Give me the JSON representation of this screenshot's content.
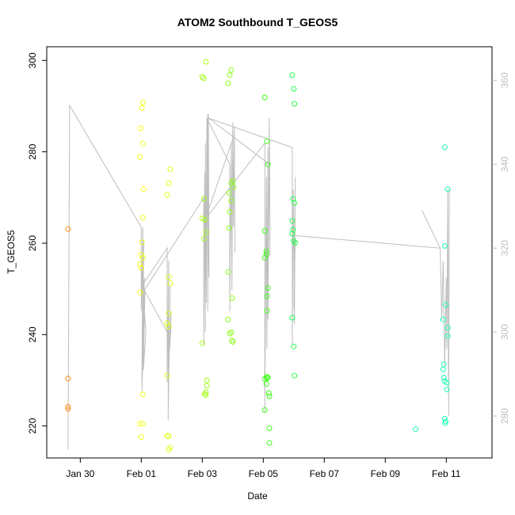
{
  "chart_data": {
    "type": "scatter",
    "title": "ATOM2 Southbound T_GEOS5",
    "xlabel": "Date",
    "ylabel": "T_GEOS5",
    "x_ticks": [
      "Jan 30",
      "Feb 01",
      "Feb 03",
      "Feb 05",
      "Feb 07",
      "Feb 09",
      "Feb 11"
    ],
    "x_tick_days": [
      30,
      32,
      34,
      36,
      38,
      40,
      42
    ],
    "xlim_days": [
      28.9,
      43.5
    ],
    "ylim": [
      213,
      303
    ],
    "y_ticks": [
      220,
      240,
      260,
      280,
      300
    ],
    "y2_ticks": [
      280,
      300,
      320,
      340,
      360
    ],
    "y2lim": [
      270,
      368
    ],
    "grid": false,
    "colors": {
      "axis": "#000000",
      "secondary_axis": "#bebebe",
      "altitude_line": "#bebebe"
    },
    "points": [
      {
        "x": 29.6,
        "y": 263.1,
        "c": "#ff8c1a"
      },
      {
        "x": 29.6,
        "y": 230.4,
        "c": "#ff8c1a"
      },
      {
        "x": 29.6,
        "y": 224.2,
        "c": "#ff8c1a"
      },
      {
        "x": 29.6,
        "y": 223.7,
        "c": "#ff8c1a"
      },
      {
        "x": 32.05,
        "y": 290.8,
        "c": "#f2ff1a"
      },
      {
        "x": 32.02,
        "y": 289.6,
        "c": "#f2ff1a"
      },
      {
        "x": 31.98,
        "y": 285.2,
        "c": "#f2ff1a"
      },
      {
        "x": 32.05,
        "y": 281.8,
        "c": "#f2ff1a"
      },
      {
        "x": 31.95,
        "y": 278.9,
        "c": "#f2ff1a"
      },
      {
        "x": 32.08,
        "y": 271.8,
        "c": "#f2ff1a"
      },
      {
        "x": 32.05,
        "y": 265.6,
        "c": "#f2ff1a"
      },
      {
        "x": 32.02,
        "y": 260.2,
        "c": "#f2ff1a"
      },
      {
        "x": 32.0,
        "y": 257.5,
        "c": "#f2ff1a"
      },
      {
        "x": 32.05,
        "y": 256.8,
        "c": "#f2ff1a"
      },
      {
        "x": 31.96,
        "y": 255.4,
        "c": "#f2ff1a"
      },
      {
        "x": 32.0,
        "y": 254.6,
        "c": "#f2ff1a"
      },
      {
        "x": 31.97,
        "y": 249.2,
        "c": "#f2ff1a"
      },
      {
        "x": 32.05,
        "y": 226.9,
        "c": "#f2ff1a"
      },
      {
        "x": 31.95,
        "y": 220.5,
        "c": "#f2ff1a"
      },
      {
        "x": 32.05,
        "y": 220.5,
        "c": "#f2ff1a"
      },
      {
        "x": 32.0,
        "y": 217.6,
        "c": "#f2ff1a"
      },
      {
        "x": 32.95,
        "y": 276.2,
        "c": "#e5ff1a"
      },
      {
        "x": 32.9,
        "y": 273.1,
        "c": "#e5ff1a"
      },
      {
        "x": 32.85,
        "y": 270.6,
        "c": "#e5ff1a"
      },
      {
        "x": 32.9,
        "y": 252.6,
        "c": "#e5ff1a"
      },
      {
        "x": 32.95,
        "y": 251.2,
        "c": "#e5ff1a"
      },
      {
        "x": 32.9,
        "y": 244.6,
        "c": "#e5ff1a"
      },
      {
        "x": 32.85,
        "y": 242.5,
        "c": "#e5ff1a"
      },
      {
        "x": 32.9,
        "y": 241.8,
        "c": "#e5ff1a"
      },
      {
        "x": 32.85,
        "y": 231.0,
        "c": "#e5ff1a"
      },
      {
        "x": 32.85,
        "y": 217.9,
        "c": "#e5ff1a"
      },
      {
        "x": 32.9,
        "y": 217.7,
        "c": "#e5ff1a"
      },
      {
        "x": 32.95,
        "y": 215.3,
        "c": "#e5ff1a"
      },
      {
        "x": 32.9,
        "y": 214.8,
        "c": "#e5ff1a"
      },
      {
        "x": 34.0,
        "y": 296.4,
        "c": "#a6ff1a"
      },
      {
        "x": 34.05,
        "y": 296.1,
        "c": "#a6ff1a"
      },
      {
        "x": 34.12,
        "y": 299.7,
        "c": "#a6ff1a"
      },
      {
        "x": 34.05,
        "y": 269.7,
        "c": "#a6ff1a"
      },
      {
        "x": 34.0,
        "y": 265.4,
        "c": "#a6ff1a"
      },
      {
        "x": 34.08,
        "y": 265.2,
        "c": "#a6ff1a"
      },
      {
        "x": 34.12,
        "y": 262.4,
        "c": "#a6ff1a"
      },
      {
        "x": 34.05,
        "y": 261.0,
        "c": "#a6ff1a"
      },
      {
        "x": 34.0,
        "y": 238.1,
        "c": "#a6ff1a"
      },
      {
        "x": 34.15,
        "y": 230.0,
        "c": "#a6ff1a"
      },
      {
        "x": 34.15,
        "y": 228.8,
        "c": "#a6ff1a"
      },
      {
        "x": 34.12,
        "y": 227.4,
        "c": "#a6ff1a"
      },
      {
        "x": 34.08,
        "y": 227.0,
        "c": "#a6ff1a"
      },
      {
        "x": 34.12,
        "y": 226.8,
        "c": "#a6ff1a"
      },
      {
        "x": 34.95,
        "y": 297.9,
        "c": "#8cff1a"
      },
      {
        "x": 34.9,
        "y": 296.8,
        "c": "#8cff1a"
      },
      {
        "x": 34.85,
        "y": 295.0,
        "c": "#8cff1a"
      },
      {
        "x": 35.0,
        "y": 273.6,
        "c": "#8cff1a"
      },
      {
        "x": 34.95,
        "y": 273.1,
        "c": "#8cff1a"
      },
      {
        "x": 35.02,
        "y": 272.3,
        "c": "#8cff1a"
      },
      {
        "x": 34.88,
        "y": 271.0,
        "c": "#8cff1a"
      },
      {
        "x": 34.95,
        "y": 269.3,
        "c": "#8cff1a"
      },
      {
        "x": 34.9,
        "y": 266.9,
        "c": "#8cff1a"
      },
      {
        "x": 34.88,
        "y": 263.3,
        "c": "#8cff1a"
      },
      {
        "x": 34.85,
        "y": 253.7,
        "c": "#8cff1a"
      },
      {
        "x": 34.98,
        "y": 248.0,
        "c": "#8cff1a"
      },
      {
        "x": 34.85,
        "y": 243.3,
        "c": "#8cff1a"
      },
      {
        "x": 34.95,
        "y": 240.5,
        "c": "#8cff1a"
      },
      {
        "x": 34.9,
        "y": 240.2,
        "c": "#8cff1a"
      },
      {
        "x": 34.97,
        "y": 238.7,
        "c": "#8cff1a"
      },
      {
        "x": 35.0,
        "y": 238.4,
        "c": "#8cff1a"
      },
      {
        "x": 36.05,
        "y": 291.9,
        "c": "#40ff1a"
      },
      {
        "x": 36.12,
        "y": 282.3,
        "c": "#40ff1a"
      },
      {
        "x": 36.15,
        "y": 277.2,
        "c": "#40ff1a"
      },
      {
        "x": 36.05,
        "y": 262.7,
        "c": "#40ff1a"
      },
      {
        "x": 36.1,
        "y": 258.2,
        "c": "#40ff1a"
      },
      {
        "x": 36.1,
        "y": 257.6,
        "c": "#40ff1a"
      },
      {
        "x": 36.05,
        "y": 256.8,
        "c": "#40ff1a"
      },
      {
        "x": 36.15,
        "y": 250.2,
        "c": "#40ff1a"
      },
      {
        "x": 36.12,
        "y": 248.4,
        "c": "#40ff1a"
      },
      {
        "x": 36.12,
        "y": 245.2,
        "c": "#40ff1a"
      },
      {
        "x": 36.1,
        "y": 230.8,
        "c": "#40ff1a"
      },
      {
        "x": 36.05,
        "y": 230.3,
        "c": "#40ff1a"
      },
      {
        "x": 36.12,
        "y": 230.4,
        "c": "#40ff1a"
      },
      {
        "x": 36.15,
        "y": 230.6,
        "c": "#40ff1a"
      },
      {
        "x": 36.1,
        "y": 229.2,
        "c": "#40ff1a"
      },
      {
        "x": 36.18,
        "y": 227.2,
        "c": "#40ff1a"
      },
      {
        "x": 36.2,
        "y": 226.5,
        "c": "#40ff1a"
      },
      {
        "x": 36.05,
        "y": 223.5,
        "c": "#40ff1a"
      },
      {
        "x": 36.2,
        "y": 219.5,
        "c": "#40ff1a"
      },
      {
        "x": 36.2,
        "y": 216.3,
        "c": "#40ff1a"
      },
      {
        "x": 36.95,
        "y": 296.8,
        "c": "#26ff4d"
      },
      {
        "x": 37.0,
        "y": 293.8,
        "c": "#26ff4d"
      },
      {
        "x": 37.02,
        "y": 290.5,
        "c": "#26ff4d"
      },
      {
        "x": 36.98,
        "y": 269.7,
        "c": "#26ff4d"
      },
      {
        "x": 37.02,
        "y": 268.8,
        "c": "#26ff4d"
      },
      {
        "x": 36.95,
        "y": 264.9,
        "c": "#26ff4d"
      },
      {
        "x": 36.98,
        "y": 263.0,
        "c": "#26ff4d"
      },
      {
        "x": 36.95,
        "y": 262.1,
        "c": "#26ff4d"
      },
      {
        "x": 37.0,
        "y": 260.5,
        "c": "#26ff4d"
      },
      {
        "x": 37.05,
        "y": 260.1,
        "c": "#26ff4d"
      },
      {
        "x": 36.95,
        "y": 243.7,
        "c": "#26ff4d"
      },
      {
        "x": 37.0,
        "y": 237.4,
        "c": "#26ff4d"
      },
      {
        "x": 37.02,
        "y": 231.0,
        "c": "#26ff4d"
      },
      {
        "x": 41.0,
        "y": 219.3,
        "c": "#1affb3"
      },
      {
        "x": 41.95,
        "y": 281.0,
        "c": "#1affb3"
      },
      {
        "x": 42.05,
        "y": 271.8,
        "c": "#1affb3"
      },
      {
        "x": 41.95,
        "y": 259.4,
        "c": "#1affb3"
      },
      {
        "x": 41.98,
        "y": 246.5,
        "c": "#1affb3"
      },
      {
        "x": 41.9,
        "y": 243.3,
        "c": "#1affb3"
      },
      {
        "x": 42.05,
        "y": 241.5,
        "c": "#1affb3"
      },
      {
        "x": 42.05,
        "y": 239.7,
        "c": "#1affb3"
      },
      {
        "x": 41.92,
        "y": 233.5,
        "c": "#1affb3"
      },
      {
        "x": 41.9,
        "y": 232.4,
        "c": "#1affb3"
      },
      {
        "x": 41.92,
        "y": 230.6,
        "c": "#1affb3"
      },
      {
        "x": 41.95,
        "y": 229.8,
        "c": "#1affb3"
      },
      {
        "x": 42.02,
        "y": 229.5,
        "c": "#1affb3"
      },
      {
        "x": 42.02,
        "y": 228.0,
        "c": "#1affb3"
      },
      {
        "x": 41.95,
        "y": 221.6,
        "c": "#1affb3"
      },
      {
        "x": 41.98,
        "y": 221.0,
        "c": "#1affb3"
      },
      {
        "x": 41.96,
        "y": 220.6,
        "c": "#1affb3"
      }
    ],
    "altitude_series": {
      "name": "",
      "y_axis": "secondary",
      "x": [
        29.6,
        29.65,
        29.65,
        32.0,
        32.0,
        32.05,
        32.02,
        32.08,
        32.05,
        32.1,
        32.02,
        32.12,
        32.07,
        32.15,
        32.1,
        32.02,
        32.85,
        32.85,
        32.9,
        32.88,
        32.95,
        32.9,
        32.98,
        32.93,
        32.98,
        32.85,
        32.1,
        34.05,
        34.05,
        34.08,
        34.1,
        34.1,
        34.12,
        34.15,
        34.13,
        34.18,
        34.18,
        34.2,
        34.22,
        34.15,
        34.9,
        34.9,
        34.95,
        34.97,
        35.0,
        35.02,
        35.05,
        35.07,
        35.05,
        34.1,
        36.05,
        36.05,
        36.1,
        36.12,
        36.15,
        36.15,
        36.2,
        36.22,
        36.2,
        34.2,
        36.95,
        36.95,
        36.98,
        37.02,
        37.05,
        37.0,
        37.05,
        37.02,
        41.8,
        41.2,
        41.8,
        41.85,
        41.9,
        41.95,
        42.0,
        42.02,
        42.05,
        42.08,
        42.1
      ],
      "y": [
        272,
        354,
        354,
        325,
        305,
        325,
        288,
        322,
        296,
        313,
        286,
        310,
        291,
        300,
        305,
        311,
        320,
        288,
        317,
        279,
        311,
        292,
        305,
        296,
        302,
        300,
        310,
        332,
        297,
        338,
        300,
        345,
        311,
        350,
        307,
        352,
        305,
        352,
        313,
        351,
        340,
        305,
        345,
        310,
        350,
        325,
        349,
        319,
        347,
        327,
        345,
        281,
        337,
        296,
        344,
        303,
        351,
        318,
        340,
        351,
        344,
        297,
        334,
        302,
        337,
        306,
        322,
        323,
        320,
        329,
        320,
        303,
        317,
        292,
        313,
        296,
        334,
        280,
        334
      ]
    }
  }
}
